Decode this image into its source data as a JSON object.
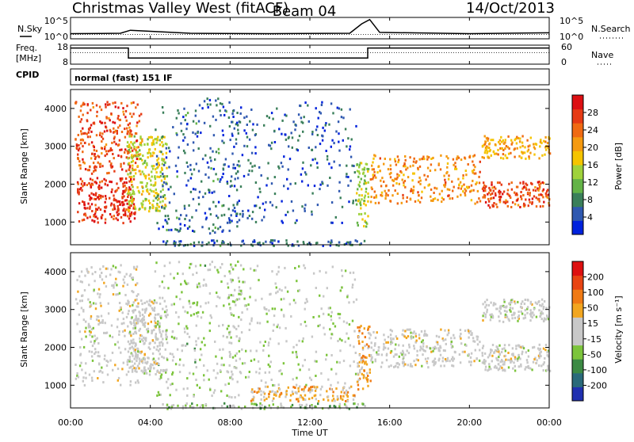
{
  "header": {
    "station": "Christmas Valley West (fitACF)",
    "beam": "Beam 04",
    "date": "14/Oct/2013"
  },
  "noise_panel": {
    "left_label": "N.Sky",
    "right_label": "N.Search",
    "left_ticks": [
      "10^5",
      "10^0"
    ],
    "right_ticks": [
      "10^5",
      "10^0"
    ]
  },
  "freq_panel": {
    "left_label_line1": "Freq.",
    "left_label_line2": "[MHz]",
    "right_label": "Nave",
    "left_ticks": [
      "18",
      "8"
    ],
    "right_ticks": [
      "60",
      "0"
    ]
  },
  "cpid": {
    "label": "CPID",
    "value": "normal (fast) 151 IF"
  },
  "power_panel": {
    "ylabel": "Slant Range [km]",
    "yticks": [
      "4000",
      "3000",
      "2000",
      "1000"
    ],
    "colorbar": {
      "label": "Power [dB]",
      "ticks": [
        "28",
        "24",
        "20",
        "16",
        "12",
        "8",
        "4"
      ],
      "colors": [
        "#0022dd",
        "#2f58b0",
        "#3a7f5a",
        "#63b347",
        "#9fd23b",
        "#f5c400",
        "#f59a10",
        "#f06a12",
        "#e63a14",
        "#dd0f12"
      ]
    }
  },
  "velocity_panel": {
    "ylabel": "Slant Range [km]",
    "yticks": [
      "4000",
      "3000",
      "2000",
      "1000"
    ],
    "colorbar": {
      "label": "Velocity [m s⁻¹]",
      "ticks": [
        "200",
        "100",
        "50",
        "15",
        "-15",
        "-50",
        "-100",
        "-200"
      ],
      "colors": [
        "#2030b0",
        "#2a6a7a",
        "#3c8a44",
        "#7cc43c",
        "#c8c8c8",
        "#c8c8c8",
        "#f2a620",
        "#f07a14",
        "#e84412",
        "#dd1010"
      ]
    }
  },
  "xaxis": {
    "label": "Time UT",
    "ticks": [
      "00:00",
      "04:00",
      "08:00",
      "12:00",
      "16:00",
      "20:00",
      "00:00"
    ]
  },
  "chart_data": [
    {
      "type": "line",
      "title": "N.Sky / N.Search",
      "x_unit": "hours UT",
      "xlim": [
        0,
        24
      ],
      "series": [
        {
          "name": "N.Sky",
          "x": [
            0,
            2.5,
            3,
            6,
            10,
            14,
            14.6,
            15,
            15.5,
            20,
            24
          ],
          "y": [
            1.2,
            1.3,
            2.0,
            1.3,
            1.2,
            1.3,
            3.5,
            4.5,
            1.5,
            1.2,
            1.4
          ]
        },
        {
          "name": "N.Search",
          "x": [
            0,
            24
          ],
          "y": [
            1.0,
            1.0
          ]
        }
      ]
    },
    {
      "type": "line",
      "title": "Freq. [MHz] / Nave",
      "x_unit": "hours UT",
      "xlim": [
        0,
        24
      ],
      "ylim": [
        8,
        18
      ],
      "series": [
        {
          "name": "Freq.",
          "x": [
            0,
            2.9,
            2.9,
            14.9,
            14.9,
            24
          ],
          "y": [
            16.5,
            16.5,
            11.2,
            11.2,
            16.5,
            16.5
          ]
        },
        {
          "name": "Nave",
          "x": [
            0,
            24
          ],
          "y": [
            14,
            14
          ]
        }
      ]
    },
    {
      "type": "heatmap",
      "title": "Power [dB]",
      "x_unit": "hours UT",
      "y_unit": "km",
      "xlim": [
        0,
        24
      ],
      "ylim": [
        400,
        4500
      ],
      "regions": [
        {
          "t0": 0.3,
          "t1": 3.2,
          "r0": 1000,
          "r1": 2200,
          "value": 28
        },
        {
          "t0": 0.2,
          "t1": 3.5,
          "r0": 2300,
          "r1": 4200,
          "value": 26
        },
        {
          "t0": 2.8,
          "t1": 4.8,
          "r0": 1300,
          "r1": 3300,
          "value": 16
        },
        {
          "t0": 4.2,
          "t1": 8.5,
          "r0": 700,
          "r1": 4300,
          "value": 6
        },
        {
          "t0": 7.8,
          "t1": 14.3,
          "r0": 1000,
          "r1": 4200,
          "value": 5
        },
        {
          "t0": 14.3,
          "t1": 14.9,
          "r0": 900,
          "r1": 2600,
          "value": 14
        },
        {
          "t0": 15.0,
          "t1": 20.5,
          "r0": 1500,
          "r1": 2800,
          "value": 22
        },
        {
          "t0": 20.6,
          "t1": 24.0,
          "r0": 1400,
          "r1": 2100,
          "value": 26
        },
        {
          "t0": 20.6,
          "t1": 24.0,
          "r0": 2700,
          "r1": 3300,
          "value": 20
        },
        {
          "t0": 4.5,
          "t1": 14.8,
          "r0": 400,
          "r1": 550,
          "value": 6
        }
      ]
    },
    {
      "type": "heatmap",
      "title": "Velocity [m s⁻¹]",
      "x_unit": "hours UT",
      "y_unit": "km",
      "xlim": [
        0,
        24
      ],
      "ylim": [
        400,
        4500
      ],
      "regions": [
        {
          "t0": 0.2,
          "t1": 3.5,
          "r0": 1000,
          "r1": 4200,
          "value": 0
        },
        {
          "t0": 2.8,
          "t1": 4.8,
          "r0": 1300,
          "r1": 3300,
          "value": 0
        },
        {
          "t0": 4.2,
          "t1": 8.5,
          "r0": 700,
          "r1": 4300,
          "value": -40
        },
        {
          "t0": 7.8,
          "t1": 14.3,
          "r0": 1000,
          "r1": 4200,
          "value": -30
        },
        {
          "t0": 9.0,
          "t1": 14.3,
          "r0": 600,
          "r1": 1000,
          "value": 60
        },
        {
          "t0": 14.3,
          "t1": 15.0,
          "r0": 900,
          "r1": 2600,
          "value": 80
        },
        {
          "t0": 15.0,
          "t1": 20.5,
          "r0": 1500,
          "r1": 2500,
          "value": 0
        },
        {
          "t0": 20.6,
          "t1": 24.0,
          "r0": 1400,
          "r1": 2100,
          "value": 0
        },
        {
          "t0": 20.6,
          "t1": 24.0,
          "r0": 2700,
          "r1": 3300,
          "value": 0
        },
        {
          "t0": 4.5,
          "t1": 14.8,
          "r0": 400,
          "r1": 550,
          "value": -60
        }
      ]
    }
  ]
}
